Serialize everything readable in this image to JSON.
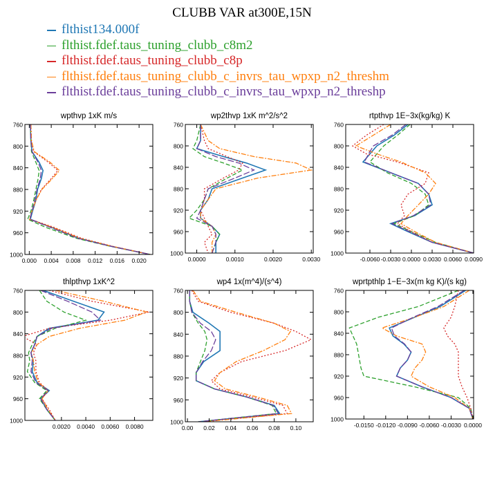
{
  "figure_title": "CLUBB VAR at300E,15N",
  "colors": {
    "flthist134": "#1f77b4",
    "c8m2": "#2ca02c",
    "c8p": "#d62728",
    "threshm": "#ff7f0e",
    "threshp": "#6a3d9a"
  },
  "chart_data": [
    {
      "type": "line",
      "title": "wpthvp  1xK m/s",
      "ylim": [
        760,
        1000
      ],
      "yticks": [
        760,
        800,
        840,
        880,
        920,
        960,
        1000
      ],
      "ytick_labels": [
        "760",
        "800",
        "840",
        "880",
        "920",
        "960",
        "1000"
      ],
      "xlim": [
        -0.0008,
        0.0225
      ],
      "xticks": [
        0,
        0.004,
        0.008,
        0.012,
        0.016,
        0.02
      ],
      "xtick_labels": [
        "0.000",
        "0.004",
        "0.008",
        "0.012",
        "0.016",
        "0.020"
      ],
      "y": [
        760,
        790,
        810,
        830,
        845,
        860,
        880,
        900,
        920,
        935,
        950,
        970,
        985,
        1000
      ],
      "series": [
        {
          "name": "flthist134.000f",
          "values": [
            0.0002,
            0.0003,
            0.0005,
            0.0018,
            0.0025,
            0.0022,
            0.0015,
            0.0012,
            0.0006,
            0.0002,
            0.004,
            0.009,
            0.015,
            0.022
          ]
        },
        {
          "name": "flthist.fdef.taus_tuning_clubb_c8m2",
          "values": [
            0.0002,
            0.0003,
            0.0004,
            0.0012,
            0.0018,
            0.0016,
            0.0012,
            0.0008,
            0.0003,
            -0.0003,
            0.003,
            0.0085,
            0.0148,
            0.022
          ]
        },
        {
          "name": "flthist.fdef.taus_tuning_clubb_c8p",
          "values": [
            0.0003,
            0.0004,
            0.0008,
            0.0035,
            0.0052,
            0.004,
            0.0022,
            0.0012,
            0.0005,
            0.0001,
            0.0045,
            0.0095,
            0.0152,
            0.022
          ]
        },
        {
          "name": "flthist.fdef.taus_tuning_clubb_c_invrs_tau_wpxp_n2_threshm",
          "values": [
            0.0003,
            0.0004,
            0.0009,
            0.0038,
            0.0055,
            0.0042,
            0.0023,
            0.0012,
            0.0005,
            0.0,
            0.0042,
            0.0092,
            0.0151,
            0.022
          ]
        },
        {
          "name": "flthist.fdef.taus_tuning_clubb_c_invrs_tau_wpxp_n2_threshp",
          "values": [
            0.0002,
            0.0003,
            0.0005,
            0.0016,
            0.0022,
            0.002,
            0.0014,
            0.001,
            0.0005,
            0.0001,
            0.0038,
            0.0088,
            0.0149,
            0.022
          ]
        }
      ]
    },
    {
      "type": "line",
      "title": "wp2thvp  1xK m^2/s^2",
      "ylim": [
        760,
        1000
      ],
      "yticks": [
        760,
        800,
        840,
        880,
        920,
        960,
        1000
      ],
      "ytick_labels": [
        "760",
        "800",
        "840",
        "880",
        "920",
        "960",
        "1000"
      ],
      "xlim": [
        -0.0003,
        0.00305
      ],
      "xticks": [
        0,
        0.001,
        0.002,
        0.003
      ],
      "xtick_labels": [
        "0.0000",
        "0.0010",
        "0.0020",
        "0.0030"
      ],
      "y": [
        760,
        790,
        805,
        820,
        832,
        845,
        860,
        880,
        900,
        920,
        935,
        950,
        965,
        980,
        1000
      ],
      "series": [
        {
          "name": "flthist134.000f",
          "values": [
            0.0001,
            0.0001,
            0.0,
            0.0007,
            0.0013,
            0.0018,
            0.0012,
            0.0004,
            0.0003,
            0.0001,
            0.0001,
            0.0004,
            0.0006,
            0.0005,
            0.0005
          ]
        },
        {
          "name": "flthist.fdef.taus_tuning_clubb_c8m2",
          "values": [
            0.0001,
            0.0,
            -0.0001,
            0.0002,
            0.0007,
            0.0012,
            0.0008,
            0.0003,
            0.0002,
            0.0,
            -0.0002,
            0.0004,
            0.0006,
            0.0005,
            0.0004
          ]
        },
        {
          "name": "flthist.fdef.taus_tuning_clubb_c8p",
          "values": [
            0.0001,
            0.0002,
            0.0003,
            0.0008,
            0.0012,
            0.0011,
            0.0007,
            0.0002,
            0.0002,
            0.0001,
            0.0002,
            0.0003,
            0.0004,
            0.0002,
            0.0003
          ]
        },
        {
          "name": "flthist.fdef.taus_tuning_clubb_c_invrs_tau_wpxp_n2_threshm",
          "values": [
            0.0001,
            0.0003,
            0.0006,
            0.0015,
            0.0026,
            0.003,
            0.0016,
            0.0005,
            0.0003,
            0.0001,
            0.0001,
            0.0004,
            0.0005,
            0.0004,
            0.0004
          ]
        },
        {
          "name": "flthist.fdef.taus_tuning_clubb_c_invrs_tau_wpxp_n2_threshp",
          "values": [
            0.0001,
            0.0001,
            0.0,
            0.0005,
            0.0011,
            0.0015,
            0.001,
            0.0003,
            0.0002,
            0.0001,
            0.0,
            0.0004,
            0.0005,
            0.0005,
            0.0004
          ]
        }
      ]
    },
    {
      "type": "line",
      "title": "rtpthvp  1E−3x(kg/kg) K",
      "ylim": [
        760,
        1000
      ],
      "yticks": [
        760,
        800,
        840,
        880,
        920,
        960,
        1000
      ],
      "ytick_labels": [
        "760",
        "800",
        "840",
        "880",
        "920",
        "960",
        "1000"
      ],
      "xlim": [
        -0.0095,
        0.009
      ],
      "xticks": [
        -0.006,
        -0.003,
        0,
        0.003,
        0.006,
        0.009
      ],
      "xtick_labels": [
        "-0.0060",
        "-0.0030",
        "0.0000",
        "0.0030",
        "0.0060",
        "0.0090"
      ],
      "y": [
        760,
        780,
        800,
        815,
        830,
        850,
        870,
        890,
        910,
        930,
        945,
        960,
        980,
        1000
      ],
      "series": [
        {
          "name": "flthist134.000f",
          "values": [
            -0.0005,
            -0.0025,
            -0.005,
            -0.006,
            -0.007,
            -0.003,
            0.001,
            0.0025,
            0.003,
            0.0005,
            -0.003,
            -0.0005,
            0.003,
            0.009
          ]
        },
        {
          "name": "flthist.fdef.taus_tuning_clubb_c8m2",
          "values": [
            -0.0002,
            -0.002,
            -0.004,
            -0.005,
            -0.006,
            -0.0035,
            0.0,
            0.002,
            0.0025,
            0.0005,
            -0.0025,
            0.0,
            0.0035,
            0.009
          ]
        },
        {
          "name": "flthist.fdef.taus_tuning_clubb_c8p",
          "values": [
            -0.004,
            -0.0065,
            -0.0085,
            -0.0065,
            -0.002,
            0.0025,
            0.002,
            -0.0005,
            -0.0015,
            -0.001,
            -0.002,
            0.0,
            0.003,
            0.009
          ]
        },
        {
          "name": "flthist.fdef.taus_tuning_clubb_c_invrs_tau_wpxp_n2_threshm",
          "values": [
            -0.003,
            -0.0055,
            -0.008,
            -0.005,
            -0.0015,
            0.002,
            0.0035,
            0.0025,
            0.001,
            -0.0005,
            -0.0015,
            0.0005,
            0.0035,
            0.009
          ]
        },
        {
          "name": "flthist.fdef.taus_tuning_clubb_c_invrs_tau_wpxp_n2_threshp",
          "values": [
            -0.0008,
            -0.0028,
            -0.0055,
            -0.0062,
            -0.0068,
            -0.003,
            0.001,
            0.0025,
            0.0028,
            0.0003,
            -0.0028,
            -0.0003,
            0.003,
            0.009
          ]
        }
      ]
    },
    {
      "type": "line",
      "title": "thlpthvp  1xK^2",
      "ylim": [
        760,
        1000
      ],
      "yticks": [
        760,
        800,
        840,
        880,
        920,
        960,
        1000
      ],
      "ytick_labels": [
        "760",
        "800",
        "840",
        "880",
        "920",
        "960",
        "1000"
      ],
      "xlim": [
        -0.001,
        0.0095
      ],
      "xticks": [
        0.002,
        0.004,
        0.006,
        0.008
      ],
      "xtick_labels": [
        "0.0020",
        "0.0040",
        "0.0060",
        "0.0080"
      ],
      "y": [
        760,
        780,
        800,
        815,
        830,
        845,
        860,
        875,
        890,
        910,
        930,
        945,
        960,
        980,
        1000
      ],
      "series": [
        {
          "name": "flthist134.000f",
          "values": [
            0.0005,
            0.003,
            0.0055,
            0.005,
            0.001,
            0.0,
            -0.0002,
            -0.0005,
            -0.0003,
            -0.0004,
            0.0,
            0.001,
            0.0003,
            0.0008,
            0.0015
          ]
        },
        {
          "name": "flthist.fdef.taus_tuning_clubb_c8m2",
          "values": [
            0.0002,
            0.0008,
            0.0022,
            0.004,
            0.0015,
            0.0,
            -0.0004,
            -0.0007,
            -0.0006,
            -0.0008,
            -0.0002,
            0.0008,
            0.0002,
            0.0008,
            0.0015
          ]
        },
        {
          "name": "flthist.fdef.taus_tuning_clubb_c8p",
          "values": [
            0.001,
            0.0045,
            0.0092,
            0.006,
            0.001,
            -0.0012,
            0.0,
            -0.0003,
            -0.0001,
            -0.0001,
            0.0002,
            0.0009,
            0.0004,
            0.001,
            0.0015
          ]
        },
        {
          "name": "flthist.fdef.taus_tuning_clubb_c_invrs_tau_wpxp_n2_threshm",
          "values": [
            0.0015,
            0.0055,
            0.009,
            0.0072,
            0.0035,
            0.001,
            0.0,
            -0.0005,
            -0.0003,
            -0.0002,
            0.0001,
            0.0009,
            0.0004,
            0.0009,
            0.0015
          ]
        },
        {
          "name": "flthist.fdef.taus_tuning_clubb_c_invrs_tau_wpxp_n2_threshp",
          "values": [
            0.0003,
            0.0025,
            0.0045,
            0.0052,
            0.0012,
            0.0,
            -0.0002,
            -0.0005,
            -0.0004,
            -0.0005,
            -0.0001,
            0.0009,
            0.0003,
            0.0008,
            0.0015
          ]
        }
      ]
    },
    {
      "type": "line",
      "title": "wp4  1x(m^4)/(s^4)",
      "ylim": [
        760,
        1000
      ],
      "yticks": [
        760,
        800,
        840,
        880,
        920,
        960,
        1000
      ],
      "ytick_labels": [
        "760",
        "800",
        "840",
        "880",
        "920",
        "960",
        "1000"
      ],
      "xlim": [
        -0.002,
        0.116
      ],
      "xticks": [
        0,
        0.02,
        0.04,
        0.06,
        0.08,
        0.1
      ],
      "xtick_labels": [
        "0.00",
        "0.02",
        "0.04",
        "0.06",
        "0.08",
        "0.10"
      ],
      "y": [
        760,
        780,
        800,
        820,
        835,
        850,
        870,
        890,
        910,
        925,
        940,
        955,
        970,
        985,
        1000
      ],
      "series": [
        {
          "name": "flthist134.000f",
          "values": [
            0.002,
            0.002,
            0.005,
            0.02,
            0.03,
            0.03,
            0.03,
            0.015,
            0.008,
            0.008,
            0.025,
            0.055,
            0.08,
            0.085,
            0.01
          ]
        },
        {
          "name": "flthist.fdef.taus_tuning_clubb_c8m2",
          "values": [
            0.002,
            0.002,
            0.004,
            0.01,
            0.016,
            0.018,
            0.016,
            0.012,
            0.008,
            0.008,
            0.025,
            0.055,
            0.078,
            0.082,
            0.01
          ]
        },
        {
          "name": "flthist.fdef.taus_tuning_clubb_c8p",
          "values": [
            0.004,
            0.01,
            0.04,
            0.08,
            0.1,
            0.114,
            0.09,
            0.05,
            0.03,
            0.022,
            0.03,
            0.06,
            0.088,
            0.092,
            0.015
          ]
        },
        {
          "name": "flthist.fdef.taus_tuning_clubb_c_invrs_tau_wpxp_n2_threshm",
          "values": [
            0.005,
            0.012,
            0.045,
            0.08,
            0.095,
            0.09,
            0.07,
            0.045,
            0.03,
            0.025,
            0.035,
            0.065,
            0.092,
            0.096,
            0.015
          ]
        },
        {
          "name": "flthist.fdef.taus_tuning_clubb_c_invrs_tau_wpxp_n2_threshp",
          "values": [
            0.002,
            0.002,
            0.004,
            0.012,
            0.022,
            0.026,
            0.022,
            0.014,
            0.008,
            0.008,
            0.025,
            0.055,
            0.079,
            0.084,
            0.01
          ]
        }
      ]
    },
    {
      "type": "line",
      "title": "wprtpthlp  1−E−3x(m kg K)/(s kg)",
      "ylim": [
        760,
        1000
      ],
      "yticks": [
        760,
        800,
        840,
        880,
        920,
        960,
        1000
      ],
      "ytick_labels": [
        "760",
        "800",
        "840",
        "880",
        "920",
        "960",
        "1000"
      ],
      "xlim": [
        -0.0175,
        0.0001
      ],
      "xticks": [
        -0.015,
        -0.012,
        -0.009,
        -0.006,
        -0.003,
        0
      ],
      "xtick_labels": [
        "-0.0150",
        "-0.0120",
        "-0.0090",
        "-0.0060",
        "-0.0030",
        "0.0000"
      ],
      "y": [
        760,
        790,
        810,
        830,
        845,
        860,
        875,
        890,
        905,
        920,
        940,
        960,
        980,
        1000
      ],
      "series": [
        {
          "name": "flthist134.000f",
          "values": [
            -0.001,
            -0.0045,
            -0.008,
            -0.0115,
            -0.011,
            -0.0095,
            -0.0085,
            -0.009,
            -0.01,
            -0.0105,
            -0.007,
            -0.003,
            -0.0005,
            0.0
          ]
        },
        {
          "name": "flthist.fdef.taus_tuning_clubb_c8m2",
          "values": [
            -0.002,
            -0.0075,
            -0.013,
            -0.017,
            -0.0165,
            -0.016,
            -0.0158,
            -0.0156,
            -0.0154,
            -0.015,
            -0.008,
            -0.002,
            -0.0003,
            0.0
          ]
        },
        {
          "name": "flthist.fdef.taus_tuning_clubb_c8p",
          "values": [
            -0.002,
            -0.0025,
            -0.003,
            -0.004,
            -0.0035,
            -0.0025,
            -0.002,
            -0.002,
            -0.002,
            -0.002,
            -0.0015,
            -0.0008,
            -0.0003,
            0.0
          ]
        },
        {
          "name": "flthist.fdef.taus_tuning_clubb_c_invrs_tau_wpxp_n2_threshm",
          "values": [
            -0.0005,
            -0.004,
            -0.008,
            -0.0125,
            -0.0105,
            -0.007,
            -0.0065,
            -0.007,
            -0.008,
            -0.0085,
            -0.006,
            -0.0025,
            -0.0005,
            0.0
          ]
        },
        {
          "name": "flthist.fdef.taus_tuning_clubb_c_invrs_tau_wpxp_n2_threshp",
          "values": [
            -0.0012,
            -0.0048,
            -0.0082,
            -0.0112,
            -0.0108,
            -0.0094,
            -0.0085,
            -0.009,
            -0.01,
            -0.0105,
            -0.007,
            -0.003,
            -0.0005,
            0.0
          ]
        }
      ]
    }
  ]
}
